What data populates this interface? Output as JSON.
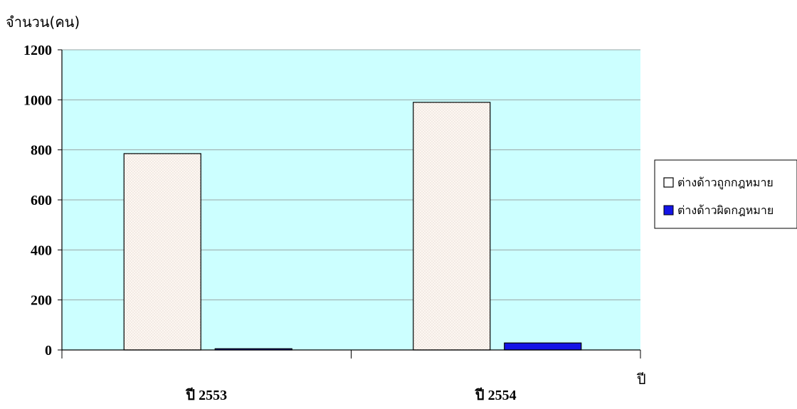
{
  "chart_data": {
    "type": "bar",
    "title": "",
    "ylabel": "จำนวน(คน)",
    "xlabel": "ปี",
    "categories": [
      "ปี 2553",
      "ปี 2554"
    ],
    "series": [
      {
        "name": "ต่างด้าวถูกกฎหมาย",
        "values": [
          785,
          990
        ],
        "color": "#fdf7f2",
        "pattern": "dotted"
      },
      {
        "name": "ต่างด้าวผิดกฎหมาย",
        "values": [
          5,
          28
        ],
        "color": "#1414e6"
      }
    ],
    "ylim": [
      0,
      1200
    ],
    "yticks": [
      0,
      200,
      400,
      600,
      800,
      1000,
      1200
    ],
    "grid": true,
    "plot_background": "#ccffff",
    "legend_position": "right"
  }
}
